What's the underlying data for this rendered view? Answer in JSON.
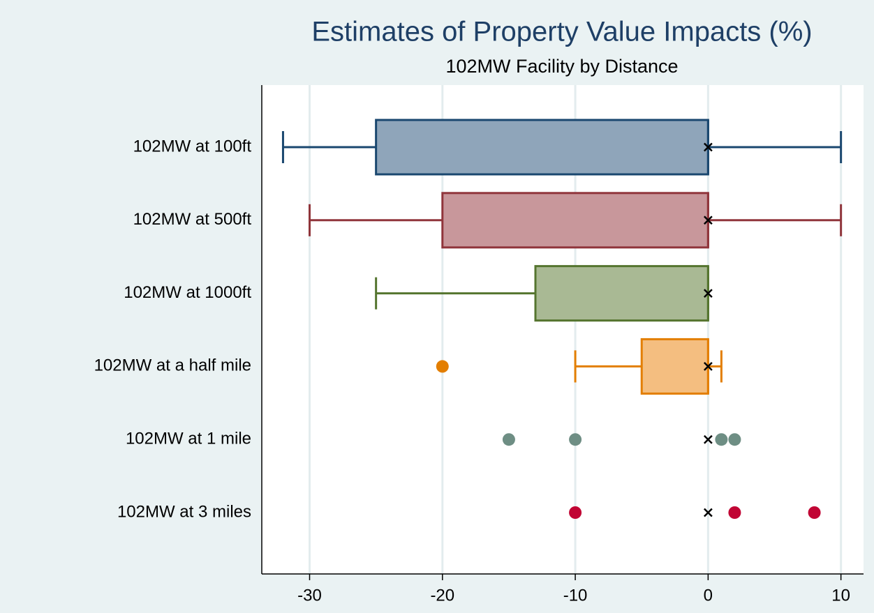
{
  "chart_data": {
    "type": "boxplot",
    "orientation": "horizontal",
    "title": "Estimates of Property Value Impacts (%)",
    "subtitle": "102MW Facility by Distance",
    "xlim": [
      -33.6,
      11.7
    ],
    "xticks": [
      -30,
      -20,
      -10,
      0,
      10
    ],
    "grid": true,
    "series": [
      {
        "name": "102MW at 100ft",
        "color": "#1a476f",
        "fill": "#8fa5ba",
        "min": -32,
        "q1": -25,
        "median": 0,
        "q3": 0,
        "max": 10,
        "mean": 0,
        "outliers": []
      },
      {
        "name": "102MW at 500ft",
        "color": "#90353b",
        "fill": "#c8979b",
        "min": -30,
        "q1": -20,
        "median": 0,
        "q3": 0,
        "max": 10,
        "mean": 0,
        "outliers": []
      },
      {
        "name": "102MW at 1000ft",
        "color": "#55752f",
        "fill": "#a9b994",
        "min": -25,
        "q1": -13,
        "median": 0,
        "q3": 0,
        "max": 0,
        "mean": 0,
        "outliers": []
      },
      {
        "name": "102MW at a half mile",
        "color": "#e37e00",
        "fill": "#f4be80",
        "min": -10,
        "q1": -5,
        "median": 0,
        "q3": 0,
        "max": 1,
        "mean": 0,
        "outliers": [
          -20
        ]
      },
      {
        "name": "102MW at 1 mile",
        "color": "#6e8e84",
        "fill": null,
        "min": null,
        "q1": null,
        "median": null,
        "q3": null,
        "max": null,
        "mean": 0,
        "outliers": [
          -15,
          -10,
          1,
          2
        ]
      },
      {
        "name": "102MW at 3 miles",
        "color": "#c10534",
        "fill": null,
        "min": null,
        "q1": null,
        "median": null,
        "q3": null,
        "max": null,
        "mean": 0,
        "outliers": [
          -10,
          2,
          8
        ]
      }
    ]
  }
}
